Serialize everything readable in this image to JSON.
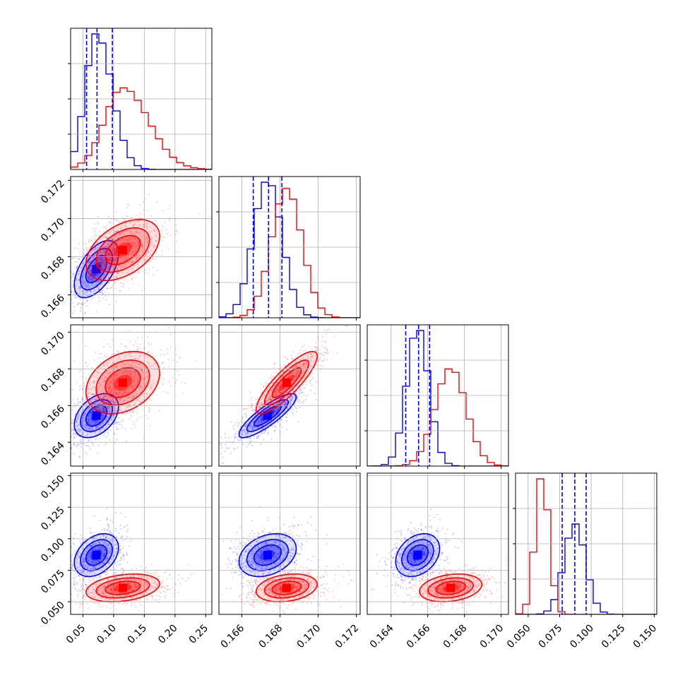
{
  "chart_data": {
    "type": "corner",
    "grid": true,
    "params": [
      {
        "lim": [
          0.03,
          0.26
        ],
        "ticks": [
          0.05,
          0.1,
          0.15,
          0.2,
          0.25
        ],
        "tick_labels": [
          "0.05",
          "0.10",
          "0.15",
          "0.20",
          "0.25"
        ]
      },
      {
        "lim": [
          0.1648,
          0.1722
        ],
        "ticks": [
          0.166,
          0.168,
          0.17,
          0.172
        ],
        "tick_labels": [
          "0.166",
          "0.168",
          "0.170",
          "0.172"
        ]
      },
      {
        "lim": [
          0.1627,
          0.1704
        ],
        "ticks": [
          0.164,
          0.166,
          0.168,
          0.17
        ],
        "tick_labels": [
          "0.164",
          "0.166",
          "0.168",
          "0.170"
        ]
      },
      {
        "lim": [
          0.04,
          0.152
        ],
        "ticks": [
          0.05,
          0.075,
          0.1,
          0.125,
          0.15
        ],
        "tick_labels": [
          "0.050",
          "0.075",
          "0.100",
          "0.125",
          "0.150"
        ]
      }
    ],
    "series": [
      {
        "color": "#0000ff",
        "mean": [
          0.072,
          0.16735,
          0.16545,
          0.087
        ],
        "std": [
          0.018,
          0.00075,
          0.0006,
          0.0085
        ],
        "quantiles": [
          [
            0.056,
            0.073,
            0.098
          ],
          [
            0.1666,
            0.1674,
            0.1681
          ],
          [
            0.1648,
            0.1655,
            0.1661
          ],
          [
            0.077,
            0.087,
            0.096
          ]
        ]
      },
      {
        "color": "#ff0000",
        "mean": [
          0.115,
          0.16835,
          0.16725,
          0.061
        ],
        "std": [
          0.03,
          0.0008,
          0.00085,
          0.0055
        ],
        "quantiles": []
      }
    ],
    "correlations": [
      {
        "pair": [
          0,
          1
        ],
        "values": [
          0.55,
          0.45
        ]
      },
      {
        "pair": [
          0,
          2
        ],
        "values": [
          0.4,
          0.3
        ]
      },
      {
        "pair": [
          1,
          2
        ],
        "values": [
          0.85,
          0.85
        ]
      },
      {
        "pair": [
          0,
          3
        ],
        "values": [
          0.35,
          0.3
        ]
      },
      {
        "pair": [
          1,
          3
        ],
        "values": [
          0.3,
          0.25
        ]
      },
      {
        "pair": [
          2,
          3
        ],
        "values": [
          0.3,
          0.25
        ]
      }
    ],
    "tick_label_rotation_deg": 45
  }
}
